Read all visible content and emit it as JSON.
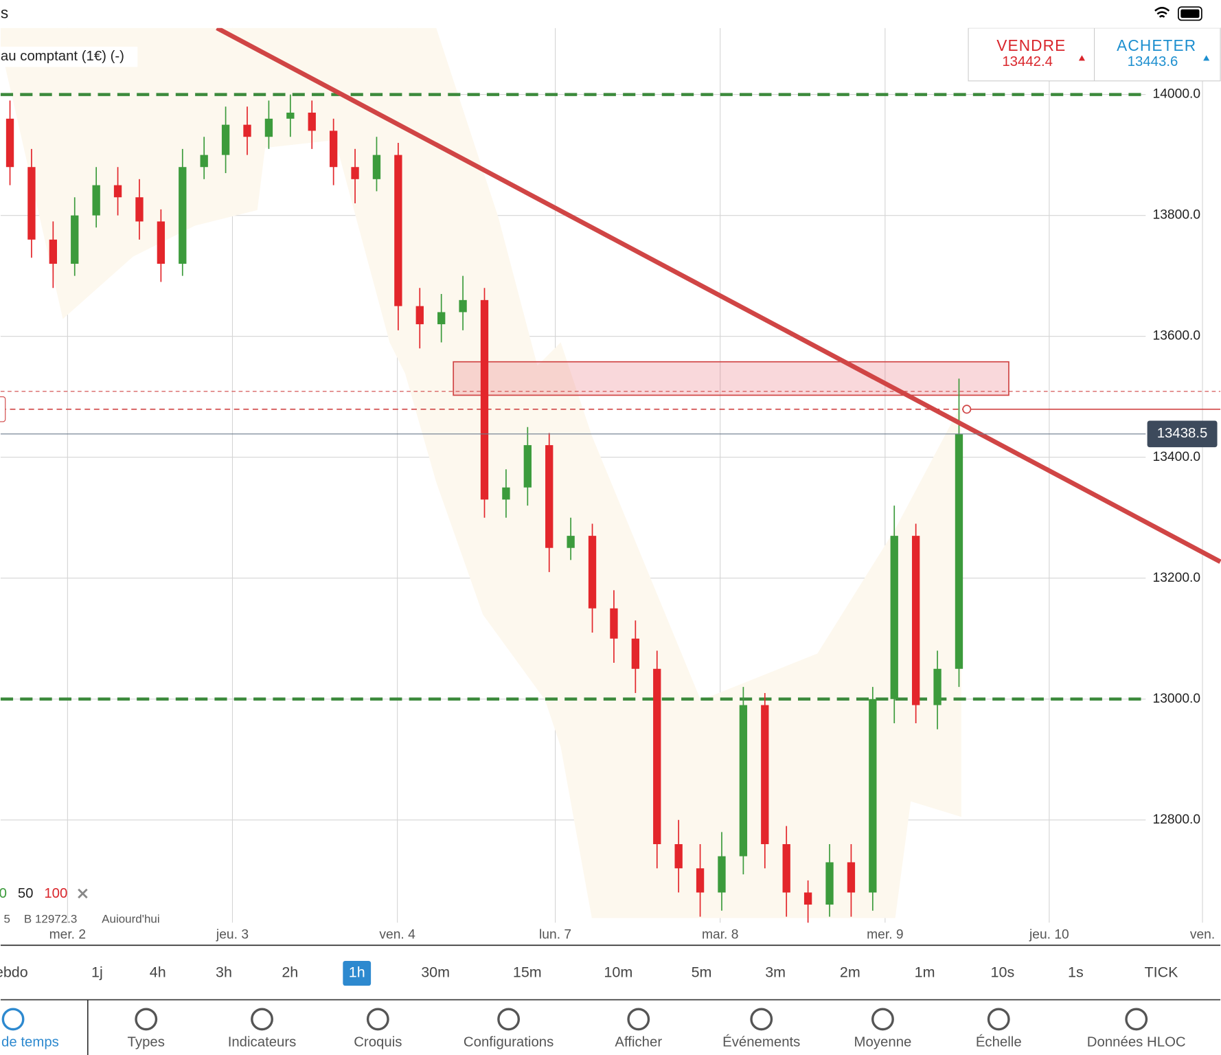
{
  "header": {
    "title": "s",
    "instrument": "au comptant (1€) (-)"
  },
  "trade": {
    "sell_label": "VENDRE",
    "sell_price": 13442.4,
    "buy_label": "ACHETER",
    "buy_price": 13443.6
  },
  "chart_data": {
    "type": "candlestick",
    "x_labels": [
      "mer. 2",
      "jeu. 3",
      "ven. 4",
      "lun. 7",
      "mar. 8",
      "mer. 9",
      "jeu. 10",
      "ven."
    ],
    "open": [
      13960,
      13880,
      13760,
      13720,
      13800,
      13850,
      13830,
      13790,
      13720,
      13880,
      13900,
      13950,
      13930,
      13960,
      13970,
      13940,
      13880,
      13860,
      13900,
      13650,
      13620,
      13640,
      13660,
      13330,
      13350,
      13420,
      13250,
      13270,
      13150,
      13100,
      13050,
      12760,
      12720,
      12680,
      12740,
      12990,
      12760,
      12680,
      12660,
      12730,
      12680,
      13000,
      13270,
      12990,
      13050
    ],
    "high": [
      13990,
      13910,
      13790,
      13830,
      13880,
      13880,
      13860,
      13810,
      13910,
      13930,
      13980,
      13980,
      13990,
      14000,
      13990,
      13960,
      13910,
      13930,
      13920,
      13680,
      13670,
      13700,
      13680,
      13380,
      13450,
      13440,
      13300,
      13290,
      13180,
      13130,
      13080,
      12800,
      12760,
      12780,
      13020,
      13010,
      12790,
      12700,
      12760,
      12760,
      13020,
      13320,
      13290,
      13080,
      13530
    ],
    "low": [
      13850,
      13730,
      13680,
      13700,
      13780,
      13800,
      13760,
      13690,
      13700,
      13860,
      13870,
      13900,
      13910,
      13930,
      13910,
      13850,
      13820,
      13840,
      13610,
      13580,
      13590,
      13610,
      13300,
      13300,
      13320,
      13210,
      13230,
      13110,
      13060,
      13010,
      12720,
      12680,
      12640,
      12650,
      12710,
      12720,
      12640,
      12630,
      12640,
      12640,
      12650,
      12960,
      12960,
      12950,
      13020
    ],
    "close": [
      13880,
      13760,
      13720,
      13800,
      13850,
      13830,
      13790,
      13720,
      13880,
      13900,
      13950,
      13930,
      13960,
      13970,
      13940,
      13880,
      13860,
      13900,
      13650,
      13620,
      13640,
      13660,
      13330,
      13350,
      13420,
      13250,
      13270,
      13150,
      13100,
      13050,
      12760,
      12720,
      12680,
      12740,
      12990,
      12760,
      12680,
      12660,
      12730,
      12680,
      13000,
      13270,
      12990,
      13050,
      13438
    ],
    "ylim": [
      12630,
      14110
    ],
    "yticks": [
      {
        "value": 12800,
        "label": "12800.0"
      },
      {
        "value": 13000,
        "label": "13000.0"
      },
      {
        "value": 13200,
        "label": "13200.0"
      },
      {
        "value": 13400,
        "label": "13400.0"
      },
      {
        "value": 13600,
        "label": "13600.0"
      },
      {
        "value": 13800,
        "label": "13800.0"
      },
      {
        "value": 14000,
        "label": "14000.0"
      }
    ],
    "levels": [
      14000,
      13000
    ],
    "last_price": 13438.5,
    "colors": {
      "up": "#3c9b3c",
      "down": "#e3262b",
      "level": "#3c8a3c"
    },
    "legend": [
      "0",
      "50",
      "100"
    ],
    "info": [
      "5",
      "B 12972.3",
      "Aujourd'hui"
    ]
  },
  "timeframes": {
    "items": [
      "ebdo",
      "1j",
      "4h",
      "3h",
      "2h",
      "1h",
      "30m",
      "15m",
      "10m",
      "5m",
      "3m",
      "2m",
      "1m",
      "10s",
      "1s",
      "TICK"
    ],
    "active": 5
  },
  "toolbar": [
    "de temps",
    "Types",
    "Indicateurs",
    "Croquis",
    "Configurations",
    "Afficher",
    "Événements",
    "Moyenne",
    "Échelle",
    "Données HLOC"
  ]
}
